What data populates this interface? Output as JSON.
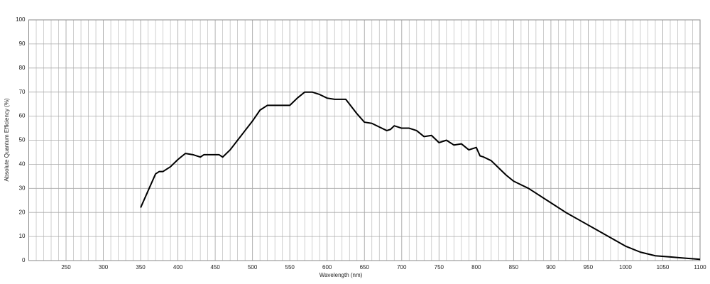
{
  "chart_data": {
    "type": "line",
    "xlabel": "Wavelength (nm)",
    "ylabel": "Absolute Quantum Efficiency (%)",
    "x": [
      350,
      360,
      370,
      375,
      380,
      390,
      400,
      410,
      420,
      430,
      435,
      450,
      455,
      460,
      470,
      480,
      490,
      500,
      510,
      520,
      530,
      550,
      560,
      570,
      580,
      590,
      600,
      610,
      625,
      630,
      640,
      650,
      660,
      670,
      680,
      685,
      690,
      700,
      710,
      720,
      730,
      740,
      750,
      760,
      770,
      780,
      790,
      800,
      805,
      810,
      820,
      830,
      840,
      850,
      860,
      870,
      880,
      900,
      920,
      940,
      960,
      980,
      1000,
      1020,
      1040,
      1060,
      1080,
      1100
    ],
    "series": [
      {
        "color": "#000000",
        "values": [
          22,
          29,
          36,
          37,
          37,
          39,
          42,
          44.5,
          44,
          43,
          44,
          44,
          44,
          43,
          46,
          50,
          54,
          58,
          62.5,
          64.5,
          64.5,
          64.5,
          67.5,
          70,
          70,
          69,
          67.5,
          67,
          67,
          65,
          61,
          57.5,
          57,
          55.5,
          54,
          54.5,
          56,
          55,
          55,
          54,
          51.5,
          52,
          49,
          50,
          48,
          48.5,
          46,
          47,
          43.5,
          43,
          41.5,
          38.5,
          35.5,
          33,
          31.5,
          30,
          28,
          24,
          20,
          16.5,
          13,
          9.5,
          6,
          3.5,
          2,
          1.5,
          1,
          0.5
        ]
      }
    ],
    "xlim": [
      200,
      1100
    ],
    "xticks": [
      250,
      300,
      350,
      400,
      450,
      500,
      550,
      600,
      650,
      700,
      750,
      800,
      850,
      900,
      950,
      1000,
      1050,
      1100
    ],
    "ylim": [
      0,
      100
    ],
    "yticks": [
      0,
      10,
      20,
      30,
      40,
      50,
      60,
      70,
      80,
      90,
      100
    ],
    "grid": true
  }
}
